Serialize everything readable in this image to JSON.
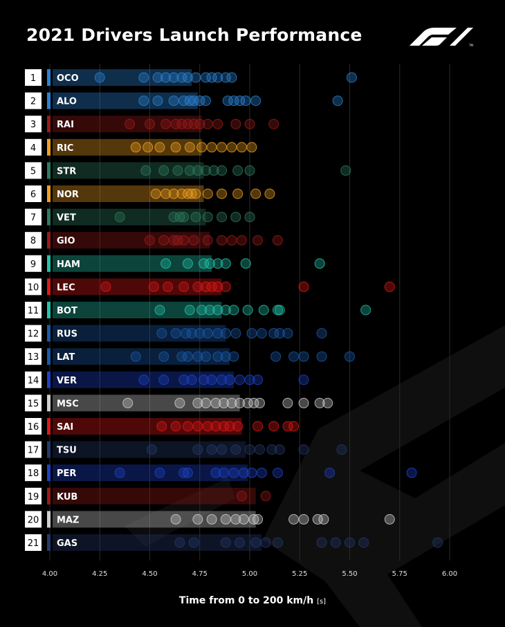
{
  "title": "2021 Drivers Launch Performance",
  "xlabel_main": "Time from 0 to 200 km/h",
  "xlabel_unit": "[s]",
  "colors": {
    "background": "#000000",
    "grid": "#2a2a2a",
    "tick_text": "#e0e0e0",
    "position_box_bg": "#ffffff",
    "position_box_text": "#000000"
  },
  "chart_data": {
    "type": "bar",
    "title": "2021 Drivers Launch Performance",
    "xlabel": "Time from 0 to 200 km/h [s]",
    "xlim": [
      4.0,
      6.0
    ],
    "xticks": [
      "4.00",
      "4.25",
      "4.50",
      "4.75",
      "5.00",
      "5.25",
      "5.50",
      "5.75",
      "6.00"
    ],
    "grid": "vertical",
    "rows": [
      {
        "pos": "1",
        "driver": "OCO",
        "color": "#2b83d6",
        "avg": 4.71,
        "points": [
          4.25,
          4.47,
          4.54,
          4.58,
          4.62,
          4.66,
          4.69,
          4.73,
          4.78,
          4.81,
          4.84,
          4.88,
          4.91,
          5.51
        ]
      },
      {
        "pos": "2",
        "driver": "ALO",
        "color": "#2b83d6",
        "avg": 4.74,
        "points": [
          4.47,
          4.54,
          4.62,
          4.67,
          4.7,
          4.72,
          4.75,
          4.78,
          4.89,
          4.92,
          4.95,
          4.98,
          5.03,
          5.44
        ]
      },
      {
        "pos": "3",
        "driver": "RAI",
        "color": "#9a1a1a",
        "avg": 4.76,
        "points": [
          4.4,
          4.5,
          4.58,
          4.63,
          4.66,
          4.69,
          4.72,
          4.75,
          4.79,
          4.84,
          4.93,
          5.0,
          5.12
        ]
      },
      {
        "pos": "4",
        "driver": "RIC",
        "color": "#f0a020",
        "avg": 4.76,
        "points": [
          4.43,
          4.49,
          4.55,
          4.63,
          4.7,
          4.76,
          4.81,
          4.86,
          4.91,
          4.96,
          5.01
        ]
      },
      {
        "pos": "5",
        "driver": "STR",
        "color": "#2e7a5e",
        "avg": 4.77,
        "points": [
          4.48,
          4.57,
          4.64,
          4.7,
          4.74,
          4.78,
          4.82,
          4.86,
          4.94,
          5.0,
          5.48
        ]
      },
      {
        "pos": "6",
        "driver": "NOR",
        "color": "#f0a020",
        "avg": 4.77,
        "points": [
          4.53,
          4.58,
          4.62,
          4.66,
          4.69,
          4.71,
          4.73,
          4.79,
          4.86,
          4.94,
          5.03,
          5.1
        ]
      },
      {
        "pos": "7",
        "driver": "VET",
        "color": "#2e7a5e",
        "avg": 4.78,
        "points": [
          4.35,
          4.62,
          4.65,
          4.67,
          4.73,
          4.79,
          4.86,
          4.93,
          5.0
        ]
      },
      {
        "pos": "8",
        "driver": "GIO",
        "color": "#9a1a1a",
        "avg": 4.8,
        "points": [
          4.5,
          4.57,
          4.62,
          4.64,
          4.67,
          4.72,
          4.79,
          4.86,
          4.91,
          4.96,
          5.04,
          5.14
        ]
      },
      {
        "pos": "9",
        "driver": "HAM",
        "color": "#22c4a8",
        "avg": 4.81,
        "points": [
          4.58,
          4.69,
          4.77,
          4.8,
          4.84,
          4.88,
          4.98,
          5.35
        ]
      },
      {
        "pos": "10",
        "driver": "LEC",
        "color": "#e01818",
        "avg": 4.86,
        "points": [
          4.28,
          4.52,
          4.59,
          4.67,
          4.74,
          4.78,
          4.81,
          4.84,
          4.88,
          5.27,
          5.7
        ]
      },
      {
        "pos": "11",
        "driver": "BOT",
        "color": "#22c4a8",
        "avg": 4.86,
        "points": [
          4.55,
          4.7,
          4.76,
          4.8,
          4.84,
          4.88,
          4.92,
          4.99,
          5.07,
          5.14,
          5.15,
          5.58
        ]
      },
      {
        "pos": "12",
        "driver": "RUS",
        "color": "#1a5aaa",
        "avg": 4.88,
        "points": [
          4.56,
          4.63,
          4.68,
          4.71,
          4.75,
          4.79,
          4.84,
          4.88,
          4.93,
          5.01,
          5.06,
          5.12,
          5.15,
          5.19,
          5.36
        ]
      },
      {
        "pos": "13",
        "driver": "LAT",
        "color": "#1a5aaa",
        "avg": 4.9,
        "points": [
          4.43,
          4.57,
          4.66,
          4.69,
          4.74,
          4.78,
          4.84,
          4.88,
          4.92,
          5.13,
          5.22,
          5.27,
          5.36,
          5.5
        ]
      },
      {
        "pos": "14",
        "driver": "VER",
        "color": "#1e41c8",
        "avg": 4.92,
        "points": [
          4.47,
          4.57,
          4.67,
          4.71,
          4.77,
          4.81,
          4.86,
          4.9,
          4.95,
          5.0,
          5.04,
          5.27
        ]
      },
      {
        "pos": "15",
        "driver": "MSC",
        "color": "#cfcfcf",
        "avg": 4.95,
        "points": [
          4.39,
          4.65,
          4.74,
          4.78,
          4.83,
          4.87,
          4.91,
          4.95,
          4.99,
          5.02,
          5.05,
          5.19,
          5.27,
          5.35,
          5.39
        ]
      },
      {
        "pos": "16",
        "driver": "SAI",
        "color": "#e01818",
        "avg": 4.96,
        "points": [
          4.56,
          4.63,
          4.69,
          4.74,
          4.79,
          4.83,
          4.87,
          4.9,
          4.94,
          5.04,
          5.12,
          5.19,
          5.22
        ]
      },
      {
        "pos": "17",
        "driver": "TSU",
        "color": "#243a6a",
        "avg": 4.98,
        "points": [
          4.51,
          4.74,
          4.81,
          4.86,
          4.93,
          5.0,
          5.05,
          5.11,
          5.15,
          5.27,
          5.46
        ]
      },
      {
        "pos": "18",
        "driver": "PER",
        "color": "#1e41c8",
        "avg": 4.99,
        "points": [
          4.35,
          4.55,
          4.67,
          4.69,
          4.83,
          4.87,
          4.92,
          4.97,
          5.01,
          5.06,
          5.14,
          5.4,
          5.81
        ]
      },
      {
        "pos": "19",
        "driver": "KUB",
        "color": "#9a1a1a",
        "avg": 5.03,
        "points": [
          4.96,
          5.08
        ]
      },
      {
        "pos": "20",
        "driver": "MAZ",
        "color": "#cfcfcf",
        "avg": 5.03,
        "points": [
          4.63,
          4.74,
          4.81,
          4.88,
          4.93,
          4.97,
          5.02,
          5.04,
          5.22,
          5.27,
          5.34,
          5.37,
          5.7
        ]
      },
      {
        "pos": "21",
        "driver": "GAS",
        "color": "#243a6a",
        "avg": 5.06,
        "points": [
          4.65,
          4.72,
          4.88,
          4.95,
          5.03,
          5.08,
          5.14,
          5.36,
          5.43,
          5.5,
          5.57,
          5.94
        ]
      }
    ]
  }
}
